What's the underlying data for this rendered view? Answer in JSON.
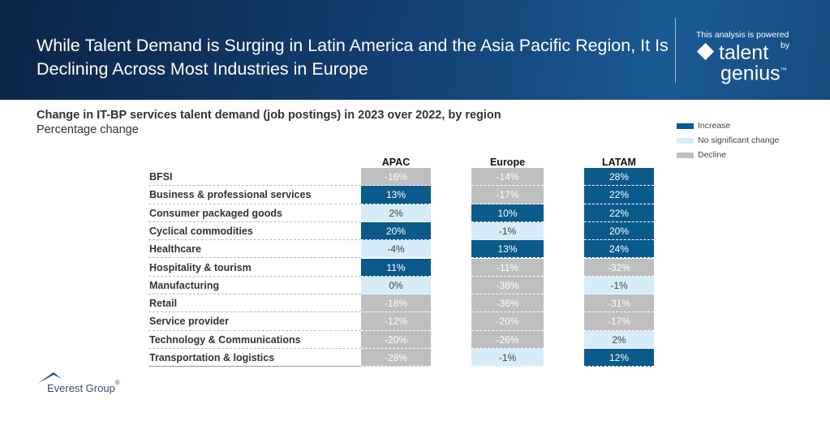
{
  "header": {
    "title": "While Talent Demand is Surging in Latin America and the Asia Pacific Region, It Is Declining Across Most Industries in Europe",
    "powered_by": "This analysis is powered",
    "by": "by",
    "logo_line1": "talent",
    "logo_line2": "genius",
    "logo_tm": "™"
  },
  "footer": {
    "logo_text": "Everest Group",
    "reg": "®"
  },
  "colors": {
    "increase": "#0b5a8c",
    "no_change": "#d6ecf8",
    "decline": "#bfbfbf"
  },
  "chart_data": {
    "type": "table",
    "title": "Change in IT-BP services talent demand (job postings) in 2023 over 2022, by region",
    "subtitle": "Percentage change",
    "legend": [
      {
        "key": "increase",
        "label": "Increase"
      },
      {
        "key": "no_change",
        "label": "No significant change"
      },
      {
        "key": "decline",
        "label": "Decline"
      }
    ],
    "legend_position": "top-right",
    "columns": [
      "APAC",
      "Europe",
      "LATAM"
    ],
    "rows": [
      {
        "label": "BFSI",
        "values": [
          "-16%",
          "-14%",
          "28%"
        ],
        "status": [
          "decline",
          "decline",
          "increase"
        ]
      },
      {
        "label": "Business & professional services",
        "values": [
          "13%",
          "-17%",
          "22%"
        ],
        "status": [
          "increase",
          "decline",
          "increase"
        ]
      },
      {
        "label": "Consumer packaged goods",
        "values": [
          "2%",
          "10%",
          "22%"
        ],
        "status": [
          "no_change",
          "increase",
          "increase"
        ]
      },
      {
        "label": "Cyclical commodities",
        "values": [
          "20%",
          "-1%",
          "20%"
        ],
        "status": [
          "increase",
          "no_change",
          "increase"
        ]
      },
      {
        "label": "Healthcare",
        "values": [
          "-4%",
          "13%",
          "24%"
        ],
        "status": [
          "no_change",
          "increase",
          "increase"
        ]
      },
      {
        "label": "Hospitality & tourism",
        "values": [
          "11%",
          "-11%",
          "-32%"
        ],
        "status": [
          "increase",
          "decline",
          "decline"
        ]
      },
      {
        "label": "Manufacturing",
        "values": [
          "0%",
          "-38%",
          "-1%"
        ],
        "status": [
          "no_change",
          "decline",
          "no_change"
        ]
      },
      {
        "label": "Retail",
        "values": [
          "-18%",
          "-36%",
          "-31%"
        ],
        "status": [
          "decline",
          "decline",
          "decline"
        ]
      },
      {
        "label": "Service provider",
        "values": [
          "-12%",
          "-20%",
          "-17%"
        ],
        "status": [
          "decline",
          "decline",
          "decline"
        ]
      },
      {
        "label": "Technology & Communications",
        "values": [
          "-20%",
          "-26%",
          "2%"
        ],
        "status": [
          "decline",
          "decline",
          "no_change"
        ]
      },
      {
        "label": "Transportation & logistics",
        "values": [
          "-28%",
          "-1%",
          "12%"
        ],
        "status": [
          "decline",
          "no_change",
          "increase"
        ]
      }
    ]
  }
}
